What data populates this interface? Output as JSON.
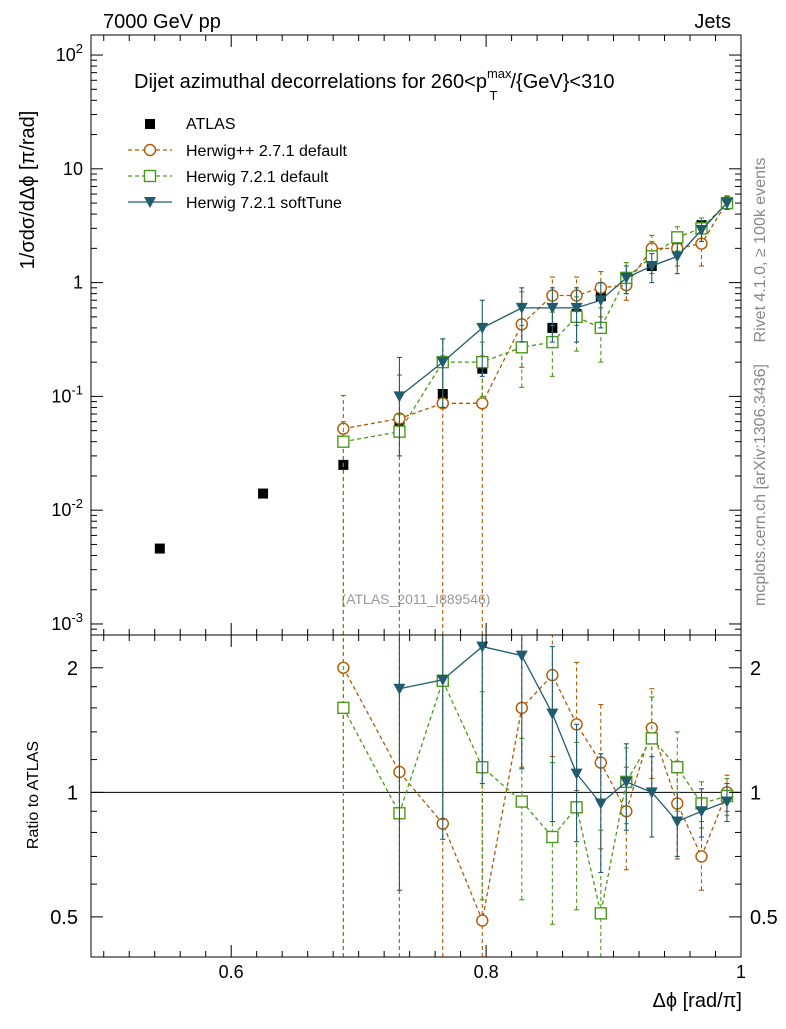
{
  "header": {
    "left": "7000 GeV pp",
    "right": "Jets",
    "side_top": "Rivet 4.1.0, ≥ 100k events",
    "side_bottom": "mcplots.cern.ch [arXiv:1306.3436]"
  },
  "colors": {
    "atlas": "#000000",
    "herwigpp": "#b35900",
    "herwig721": "#4c9a1a",
    "softtune": "#1f5c6e"
  },
  "chart_data": [
    {
      "type": "scatter",
      "title_main": "Dijet azimuthal decorrelations for 260<p",
      "title_sup": "max",
      "title_sub": "T",
      "title_tail": "/{GeV}<310",
      "xlabel": "Δϕ [rad/π]",
      "ylabel": "1/σdσ/dΔϕ [π/rad]",
      "yscale": "log",
      "xlim": [
        0.49,
        1.0
      ],
      "ylim": [
        0.0008,
        150
      ],
      "xticks": [
        0.6,
        0.8,
        1
      ],
      "watermark": "(ATLAS_2011_I889546)",
      "series": [
        {
          "name": "ATLAS",
          "key": "atlas",
          "style": "square-filled",
          "x": [
            0.544,
            0.625,
            0.688,
            0.732,
            0.766,
            0.797,
            0.828,
            0.852,
            0.871,
            0.89,
            0.91,
            0.93,
            0.95,
            0.969,
            0.989
          ],
          "y": [
            0.0046,
            0.014,
            0.025,
            0.057,
            0.105,
            0.175,
            0.27,
            0.4,
            0.53,
            0.76,
            1.05,
            1.4,
            2.1,
            3.2,
            5.1
          ]
        },
        {
          "name": "Herwig++ 2.7.1 default",
          "key": "herwigpp",
          "style": "circle-dashed",
          "x": [
            0.688,
            0.732,
            0.766,
            0.797,
            0.828,
            0.852,
            0.871,
            0.89,
            0.91,
            0.93,
            0.95,
            0.969,
            0.989
          ],
          "y": [
            0.052,
            0.064,
            0.087,
            0.087,
            0.43,
            0.77,
            0.77,
            0.9,
            0.95,
            2.0,
            2.0,
            2.2,
            5.1
          ],
          "err_lo": [
            0.052,
            0.064,
            0.087,
            0.087,
            0.25,
            0.35,
            0.35,
            0.4,
            0.25,
            0.6,
            0.6,
            0.8,
            0.6
          ],
          "err_hi": [
            0.05,
            0.09,
            0.14,
            0.14,
            0.4,
            0.35,
            0.35,
            0.35,
            0.25,
            0.6,
            0.6,
            0.8,
            0.7
          ]
        },
        {
          "name": "Herwig 7.2.1 default",
          "key": "herwig721",
          "style": "square-open-dashed",
          "x": [
            0.688,
            0.732,
            0.766,
            0.797,
            0.828,
            0.852,
            0.871,
            0.89,
            0.91,
            0.93,
            0.95,
            0.969,
            0.989
          ],
          "y": [
            0.04,
            0.049,
            0.2,
            0.2,
            0.27,
            0.3,
            0.5,
            0.4,
            1.1,
            1.7,
            2.5,
            3.0,
            5.0
          ],
          "err_lo": [
            0.04,
            0.049,
            0.12,
            0.1,
            0.15,
            0.15,
            0.25,
            0.2,
            0.3,
            0.5,
            0.6,
            0.7,
            0.6
          ],
          "err_hi": [
            0.02,
            0.02,
            0.12,
            0.1,
            0.15,
            0.25,
            0.25,
            0.2,
            0.4,
            0.6,
            0.6,
            0.7,
            0.7
          ]
        },
        {
          "name": "Herwig 7.2.1 softTune",
          "key": "softtune",
          "style": "triangle-solid",
          "x": [
            0.732,
            0.766,
            0.797,
            0.828,
            0.852,
            0.871,
            0.89,
            0.91,
            0.93,
            0.95,
            0.969,
            0.989
          ],
          "y": [
            0.1,
            0.2,
            0.4,
            0.6,
            0.6,
            0.6,
            0.7,
            1.1,
            1.4,
            1.7,
            2.9,
            5.0
          ],
          "err_lo": [
            0.07,
            0.12,
            0.25,
            0.3,
            0.3,
            0.3,
            0.3,
            0.3,
            0.4,
            0.5,
            0.6,
            0.6
          ],
          "err_hi": [
            0.12,
            0.12,
            0.3,
            0.3,
            0.3,
            0.3,
            0.3,
            0.3,
            0.4,
            0.5,
            0.6,
            0.6
          ]
        }
      ],
      "legend_position": "top-left"
    },
    {
      "type": "scatter",
      "ylabel": "Ratio to ATLAS",
      "yscale": "log",
      "ylim": [
        0.4,
        2.4
      ],
      "yticks": [
        0.5,
        1,
        2
      ],
      "reference_line": 1,
      "series": [
        {
          "key": "herwigpp",
          "style": "circle-dashed",
          "x": [
            0.688,
            0.732,
            0.766,
            0.797,
            0.828,
            0.852,
            0.871,
            0.89,
            0.91,
            0.93,
            0.95,
            0.969,
            0.989
          ],
          "y": [
            2.0,
            1.12,
            0.84,
            0.49,
            1.6,
            1.92,
            1.46,
            1.18,
            0.9,
            1.43,
            0.94,
            0.7,
            1.0
          ],
          "err_lo": [
            2.0,
            1.12,
            0.84,
            0.49,
            0.45,
            0.7,
            0.45,
            0.45,
            0.25,
            0.35,
            0.25,
            0.12,
            0.1
          ],
          "err_hi": [
            2.0,
            2.0,
            2.0,
            2.0,
            1.0,
            1.2,
            0.6,
            0.45,
            0.25,
            0.35,
            0.25,
            0.15,
            0.1
          ]
        },
        {
          "key": "herwig721",
          "style": "square-open-dashed",
          "x": [
            0.688,
            0.732,
            0.766,
            0.797,
            0.828,
            0.852,
            0.871,
            0.89,
            0.91,
            0.93,
            0.95,
            0.969,
            0.989
          ],
          "y": [
            1.6,
            0.89,
            1.86,
            1.15,
            0.95,
            0.78,
            0.92,
            0.51,
            1.06,
            1.35,
            1.15,
            0.94,
            0.98
          ],
          "err_lo": [
            1.6,
            0.89,
            1.0,
            0.6,
            0.4,
            0.3,
            0.4,
            0.25,
            0.22,
            0.35,
            0.25,
            0.12,
            0.1
          ],
          "err_hi": [
            2.0,
            2.0,
            1.0,
            0.6,
            0.4,
            0.4,
            0.4,
            0.3,
            0.22,
            0.35,
            0.25,
            0.12,
            0.1
          ]
        },
        {
          "key": "softtune",
          "style": "triangle-solid",
          "x": [
            0.732,
            0.766,
            0.797,
            0.828,
            0.852,
            0.871,
            0.89,
            0.91,
            0.93,
            0.95,
            0.969,
            0.989
          ],
          "y": [
            1.78,
            1.87,
            2.25,
            2.14,
            1.55,
            1.11,
            0.94,
            1.06,
            1.0,
            0.85,
            0.9,
            0.95
          ],
          "err_lo": [
            1.2,
            1.1,
            1.2,
            1.0,
            0.7,
            0.35,
            0.3,
            0.25,
            0.22,
            0.15,
            0.12,
            0.1
          ],
          "err_hi": [
            1.2,
            1.1,
            1.2,
            1.0,
            0.7,
            0.35,
            0.3,
            0.25,
            0.22,
            0.15,
            0.12,
            0.1
          ]
        }
      ]
    }
  ]
}
